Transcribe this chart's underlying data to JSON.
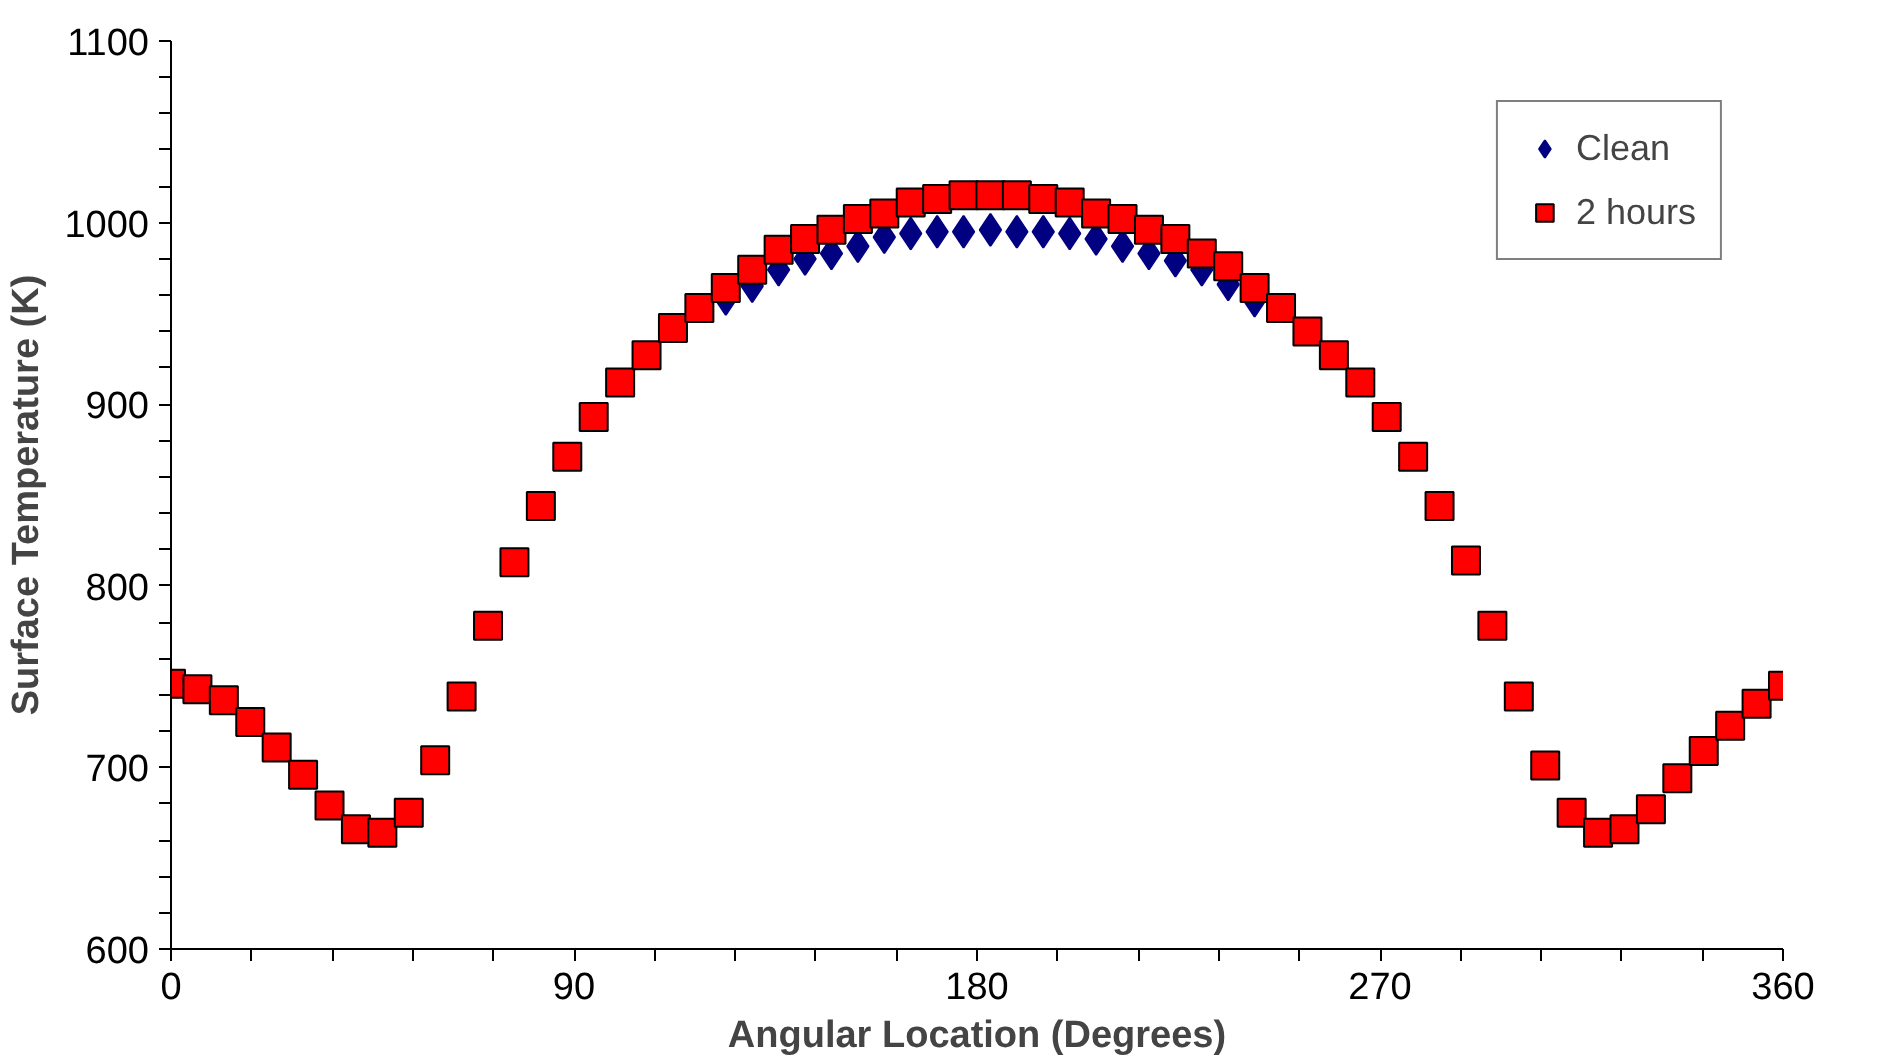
{
  "chart_data": {
    "type": "scatter",
    "xlabel": "Angular Location (Degrees)",
    "ylabel": "Surface Temperature (K)",
    "x": [
      0,
      5.9,
      11.8,
      17.7,
      23.6,
      29.5,
      35.4,
      41.3,
      47.2,
      53.1,
      59.0,
      64.9,
      70.8,
      76.7,
      82.6,
      88.5,
      94.4,
      100.3,
      106.2,
      112.1,
      118.0,
      123.9,
      129.8,
      135.7,
      141.6,
      147.5,
      153.4,
      159.3,
      165.2,
      171.1,
      177.0,
      183.0,
      188.9,
      194.8,
      200.7,
      206.6,
      212.5,
      218.4,
      224.3,
      230.2,
      236.1,
      242.0,
      247.9,
      253.8,
      259.7,
      265.6,
      271.5,
      277.4,
      283.3,
      289.2,
      295.1,
      301.0,
      306.9,
      312.8,
      318.7,
      324.6,
      330.5,
      336.4,
      342.3,
      348.2,
      354.1,
      360
    ],
    "series": [
      {
        "name": "Clean",
        "color": "#000080",
        "marker": "diamond",
        "values": [
          null,
          null,
          null,
          null,
          null,
          null,
          null,
          null,
          null,
          null,
          null,
          null,
          null,
          null,
          null,
          null,
          null,
          null,
          null,
          null,
          null,
          958,
          965,
          974,
          980,
          983,
          987,
          992,
          994,
          995,
          995,
          996,
          995,
          995,
          994,
          991,
          987,
          983,
          979,
          974,
          966,
          957,
          null,
          null,
          null,
          null,
          null,
          null,
          null,
          null,
          null,
          null,
          null,
          null,
          null,
          null,
          null,
          null,
          null,
          null,
          null,
          null
        ]
      },
      {
        "name": "2 hours",
        "color": "#ff0000",
        "marker": "square",
        "values": [
          746,
          743,
          737,
          725,
          711,
          696,
          679,
          666,
          664,
          675,
          704,
          739,
          778,
          813,
          844,
          871,
          893,
          912,
          927,
          942,
          953,
          964,
          974,
          985,
          991,
          996,
          1002,
          1005,
          1011,
          1013,
          1015,
          1015,
          1015,
          1013,
          1011,
          1005,
          1002,
          996,
          991,
          983,
          976,
          964,
          953,
          940,
          927,
          912,
          893,
          871,
          844,
          814,
          778,
          739,
          701,
          675,
          664,
          666,
          677,
          694,
          709,
          723,
          735,
          745
        ]
      }
    ],
    "xlim": [
      0,
      360
    ],
    "ylim": [
      600,
      1100
    ],
    "xticks": [
      0,
      {
        "value": 18,
        "label": null
      },
      {
        "value": 36,
        "label": null
      },
      {
        "value": 54,
        "label": null
      },
      {
        "value": 72,
        "label": null
      },
      90,
      {
        "value": 108,
        "label": null
      },
      {
        "value": 126,
        "label": null
      },
      {
        "value": 144,
        "label": null
      },
      {
        "value": 162,
        "label": null
      },
      180,
      {
        "value": 198,
        "label": null
      },
      {
        "value": 216,
        "label": null
      },
      {
        "value": 234,
        "label": null
      },
      {
        "value": 252,
        "label": null
      },
      270,
      {
        "value": 288,
        "label": null
      },
      {
        "value": 306,
        "label": null
      },
      {
        "value": 324,
        "label": null
      },
      {
        "value": 342,
        "label": null
      },
      360
    ],
    "yticks": [
      600,
      {
        "value": 620,
        "label": null
      },
      {
        "value": 640,
        "label": null
      },
      {
        "value": 660,
        "label": null
      },
      {
        "value": 680,
        "label": null
      },
      700,
      {
        "value": 720,
        "label": null
      },
      {
        "value": 740,
        "label": null
      },
      {
        "value": 760,
        "label": null
      },
      {
        "value": 780,
        "label": null
      },
      800,
      {
        "value": 820,
        "label": null
      },
      {
        "value": 840,
        "label": null
      },
      {
        "value": 860,
        "label": null
      },
      {
        "value": 880,
        "label": null
      },
      900,
      {
        "value": 920,
        "label": null
      },
      {
        "value": 940,
        "label": null
      },
      {
        "value": 960,
        "label": null
      },
      {
        "value": 980,
        "label": null
      },
      1000,
      {
        "value": 1020,
        "label": null
      },
      {
        "value": 1040,
        "label": null
      },
      {
        "value": 1060,
        "label": null
      },
      {
        "value": 1080,
        "label": null
      },
      1100
    ],
    "grid": false,
    "legend": "top right"
  }
}
